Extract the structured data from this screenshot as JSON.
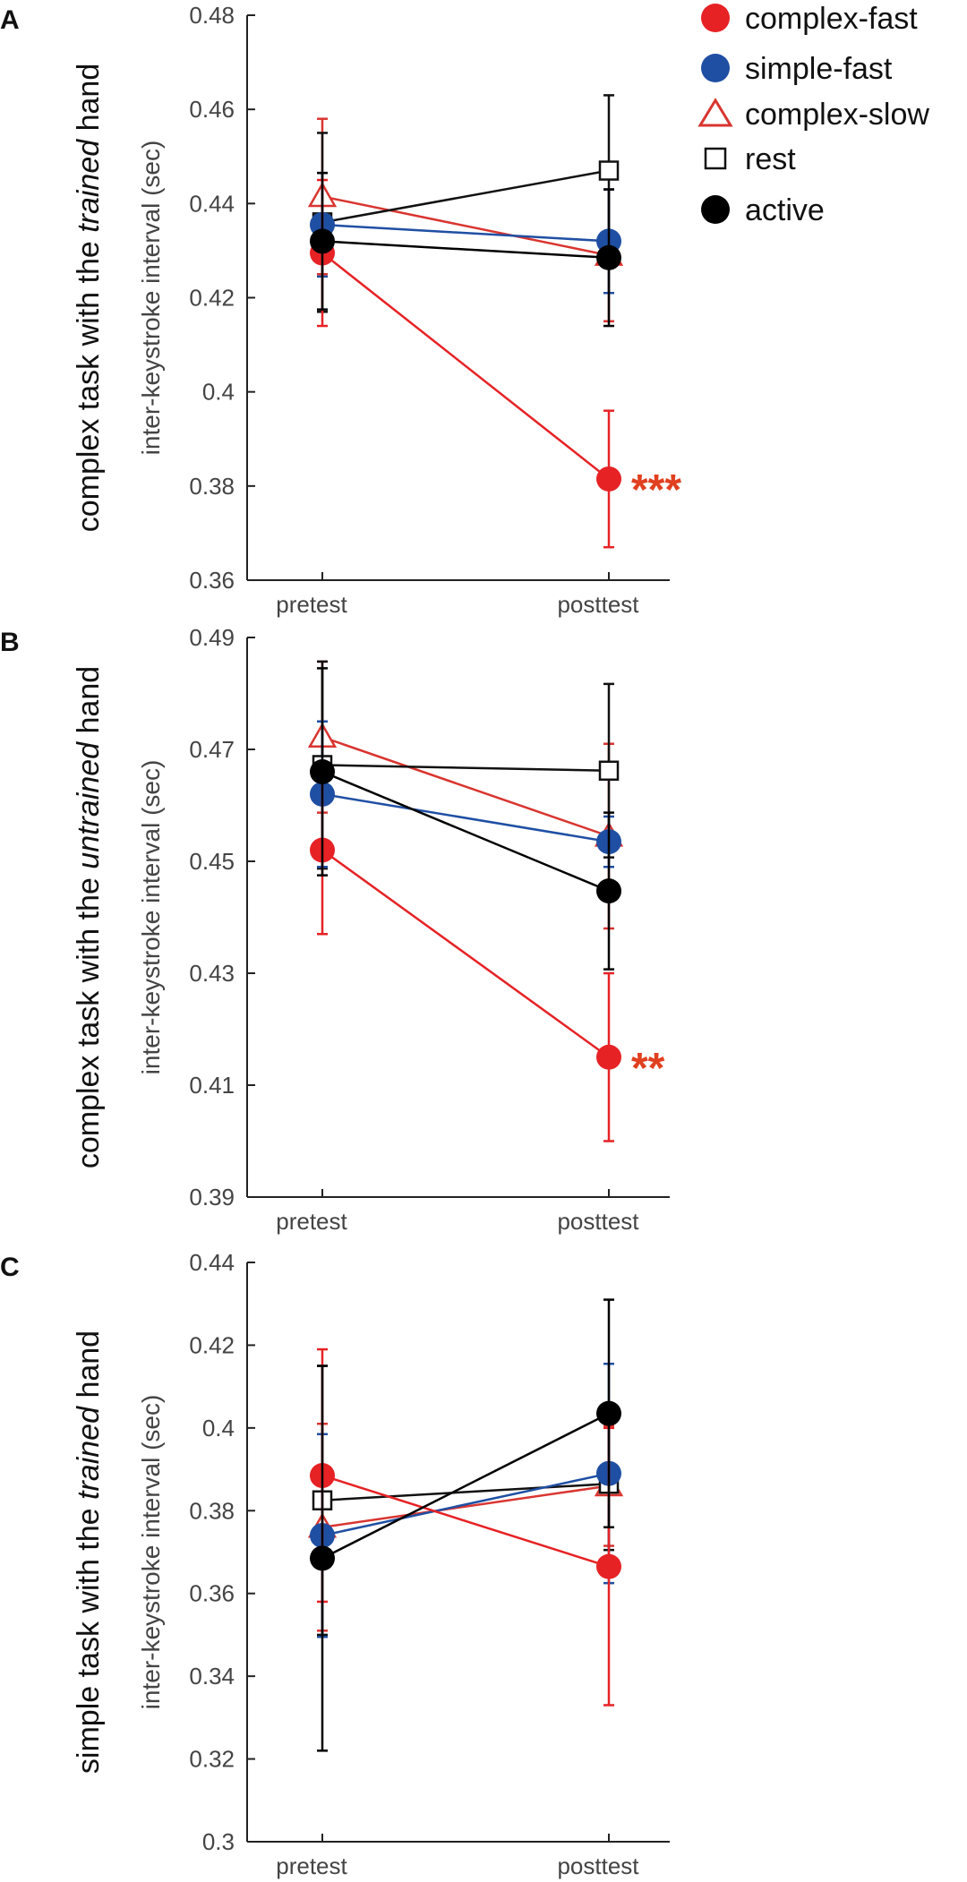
{
  "colors": {
    "complex_fast": "#e62225",
    "simple_fast": "#1f4fa3",
    "complex_slow": "#d93530",
    "rest": "#111111",
    "active": "#000000",
    "axis": "#222222",
    "star": "#e04020"
  },
  "legend": {
    "items": [
      {
        "label": "complex-fast",
        "marker": "filled-circle",
        "color": "#e62225"
      },
      {
        "label": "simple-fast",
        "marker": "filled-circle",
        "color": "#1f4fa3"
      },
      {
        "label": "complex-slow",
        "marker": "open-triangle",
        "color": "#d93530"
      },
      {
        "label": "rest",
        "marker": "open-square",
        "color": "#111111"
      },
      {
        "label": "active",
        "marker": "filled-circle",
        "color": "#000000"
      }
    ]
  },
  "chart_data": [
    {
      "panel": "A",
      "type": "line",
      "row_label": {
        "pre": "complex task with the ",
        "italic": "trained",
        "post": " hand"
      },
      "ylabel": "inter-keystroke interval (sec)",
      "categories": [
        "pretest",
        "posttest"
      ],
      "ylim": [
        0.36,
        0.48
      ],
      "yticks": [
        "0.36",
        "0.38",
        "0.4",
        "0.42",
        "0.44",
        "0.46",
        "0.48"
      ],
      "series": [
        {
          "name": "complex-slow",
          "values": [
            0.4415,
            0.429
          ],
          "err": [
            0.0165,
            0.014
          ]
        },
        {
          "name": "rest",
          "values": [
            0.436,
            0.447
          ],
          "err": [
            0.019,
            0.016
          ]
        },
        {
          "name": "simple-fast",
          "values": [
            0.4355,
            0.432
          ],
          "err": [
            0.011,
            0.011
          ]
        },
        {
          "name": "complex-fast",
          "values": [
            0.4295,
            0.3815
          ],
          "err": [
            0.0155,
            0.0145
          ]
        },
        {
          "name": "active",
          "values": [
            0.432,
            0.4285
          ],
          "err": [
            0.0145,
            0.0145
          ]
        }
      ],
      "significance": "***"
    },
    {
      "panel": "B",
      "type": "line",
      "row_label": {
        "pre": "complex task with the ",
        "italic": "untrained",
        "post": " hand"
      },
      "ylabel": "inter-keystroke interval (sec)",
      "categories": [
        "pretest",
        "posttest"
      ],
      "ylim": [
        0.39,
        0.49
      ],
      "yticks": [
        "0.39",
        "0.41",
        "0.43",
        "0.45",
        "0.47",
        "0.49"
      ],
      "series": [
        {
          "name": "complex-slow",
          "values": [
            0.4722,
            0.4545
          ],
          "err": [
            0.0135,
            0.0165
          ]
        },
        {
          "name": "rest",
          "values": [
            0.4672,
            0.4662
          ],
          "err": [
            0.0185,
            0.0155
          ]
        },
        {
          "name": "simple-fast",
          "values": [
            0.462,
            0.4535
          ],
          "err": [
            0.013,
            0.0045
          ]
        },
        {
          "name": "complex-fast",
          "values": [
            0.452,
            0.415
          ],
          "err": [
            0.015,
            0.015
          ]
        },
        {
          "name": "active",
          "values": [
            0.466,
            0.4447
          ],
          "err": [
            0.0185,
            0.014
          ]
        }
      ],
      "significance": "**"
    },
    {
      "panel": "C",
      "type": "line",
      "row_label": {
        "pre": "simple task with the ",
        "italic": "trained",
        "post": " hand"
      },
      "ylabel": "inter-keystroke interval (sec)",
      "categories": [
        "pretest",
        "posttest"
      ],
      "ylim": [
        0.3,
        0.44
      ],
      "yticks": [
        "0.3",
        "0.32",
        "0.34",
        "0.36",
        "0.38",
        "0.4",
        "0.42",
        "0.44"
      ],
      "series": [
        {
          "name": "complex-slow",
          "values": [
            0.376,
            0.386
          ],
          "err": [
            0.025,
            0.0145
          ]
        },
        {
          "name": "rest",
          "values": [
            0.3825,
            0.3865
          ],
          "err": [
            0.0325,
            0.016
          ]
        },
        {
          "name": "simple-fast",
          "values": [
            0.374,
            0.389
          ],
          "err": [
            0.0245,
            0.0265
          ]
        },
        {
          "name": "complex-fast",
          "values": [
            0.3885,
            0.3665
          ],
          "err": [
            0.0305,
            0.0335
          ]
        },
        {
          "name": "active",
          "values": [
            0.3685,
            0.4035
          ],
          "err": [
            0.0465,
            0.0275
          ]
        }
      ],
      "significance": ""
    }
  ]
}
